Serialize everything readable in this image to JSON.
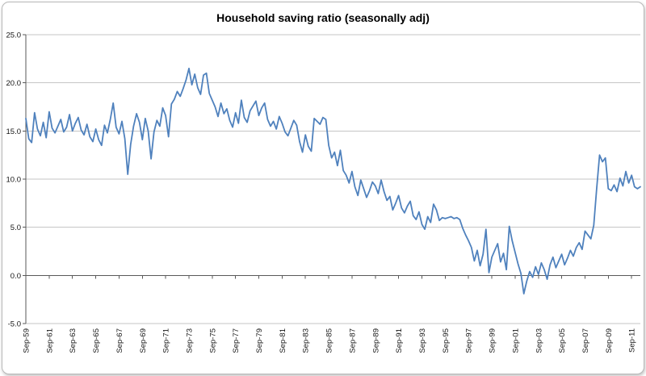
{
  "window": {
    "background": "#ffffff",
    "frame_border_color": "#b9b9b9"
  },
  "chart_data": {
    "type": "line",
    "title": "Household saving ratio (seasonally adj)",
    "line_color": "#4F81BD",
    "gridline_color": "#c6c6c6",
    "axis_color": "#595959",
    "grid": true,
    "legend": "none",
    "ylim": [
      -5.0,
      25.0
    ],
    "y_ticks": [
      25,
      20,
      15,
      10,
      5,
      0,
      -5
    ],
    "y_tick_labels": [
      "25.0",
      "20.0",
      "15.0",
      "10.0",
      "5.0",
      "0.0",
      "-5.0"
    ],
    "x_tick_interval": 8,
    "x_start": "Sep-59",
    "x_frequency": "quarterly",
    "x_tick_labels": [
      "Sep-59",
      "Sep-61",
      "Sep-63",
      "Sep-65",
      "Sep-67",
      "Sep-69",
      "Sep-71",
      "Sep-73",
      "Sep-75",
      "Sep-77",
      "Sep-79",
      "Sep-81",
      "Sep-83",
      "Sep-85",
      "Sep-87",
      "Sep-89",
      "Sep-91",
      "Sep-93",
      "Sep-95",
      "Sep-97",
      "Sep-99",
      "Sep-01",
      "Sep-03",
      "Sep-05",
      "Sep-07",
      "Sep-09",
      "Sep-11"
    ],
    "values": [
      16.3,
      14.2,
      13.8,
      16.9,
      15.2,
      14.5,
      15.9,
      14.3,
      17.0,
      15.3,
      14.8,
      15.5,
      16.2,
      14.9,
      15.4,
      16.7,
      15.0,
      15.8,
      16.4,
      15.1,
      14.6,
      15.7,
      14.4,
      13.9,
      15.2,
      14.1,
      13.5,
      15.6,
      14.8,
      16.2,
      17.9,
      15.4,
      14.7,
      16.0,
      14.2,
      10.5,
      13.6,
      15.5,
      16.8,
      15.9,
      14.1,
      16.3,
      15.0,
      12.1,
      14.9,
      16.1,
      15.5,
      17.4,
      16.6,
      14.4,
      17.8,
      18.3,
      19.1,
      18.6,
      19.4,
      20.3,
      21.5,
      19.8,
      20.9,
      19.5,
      18.8,
      20.8,
      21.0,
      18.9,
      18.2,
      17.5,
      16.5,
      17.9,
      16.8,
      17.3,
      16.1,
      15.4,
      16.9,
      15.8,
      18.2,
      16.4,
      15.9,
      17.1,
      17.6,
      18.1,
      16.6,
      17.4,
      17.9,
      16.2,
      15.5,
      16.0,
      15.2,
      16.5,
      15.8,
      14.9,
      14.5,
      15.3,
      16.1,
      15.6,
      13.9,
      12.8,
      14.6,
      13.4,
      12.9,
      16.3,
      16.0,
      15.7,
      16.4,
      16.2,
      13.5,
      12.2,
      12.8,
      11.4,
      13.0,
      10.9,
      10.4,
      9.6,
      10.8,
      9.2,
      8.3,
      9.9,
      9.0,
      8.1,
      8.8,
      9.7,
      9.3,
      8.5,
      9.9,
      8.7,
      7.8,
      8.2,
      6.8,
      7.5,
      8.3,
      7.0,
      6.5,
      7.2,
      7.7,
      6.2,
      5.8,
      6.6,
      5.3,
      4.8,
      6.1,
      5.5,
      7.4,
      6.8,
      5.7,
      6.0,
      5.9,
      6.0,
      6.1,
      5.9,
      6.0,
      5.8,
      4.9,
      4.2,
      3.6,
      2.9,
      1.5,
      2.6,
      1.0,
      2.2,
      4.8,
      0.3,
      1.9,
      2.6,
      3.3,
      1.4,
      2.3,
      0.6,
      5.1,
      3.6,
      2.4,
      1.2,
      0.2,
      -1.9,
      -0.6,
      0.4,
      -0.2,
      0.9,
      0.1,
      1.3,
      0.6,
      -0.4,
      1.1,
      1.9,
      0.8,
      1.5,
      2.2,
      1.1,
      1.8,
      2.6,
      2.0,
      2.9,
      3.4,
      2.7,
      4.6,
      4.2,
      3.8,
      5.2,
      9.0,
      12.5,
      11.8,
      12.2,
      9.0,
      8.8,
      9.4,
      8.7,
      10.1,
      9.3,
      10.8,
      9.6,
      10.4,
      9.2,
      9.0,
      9.2
    ]
  }
}
